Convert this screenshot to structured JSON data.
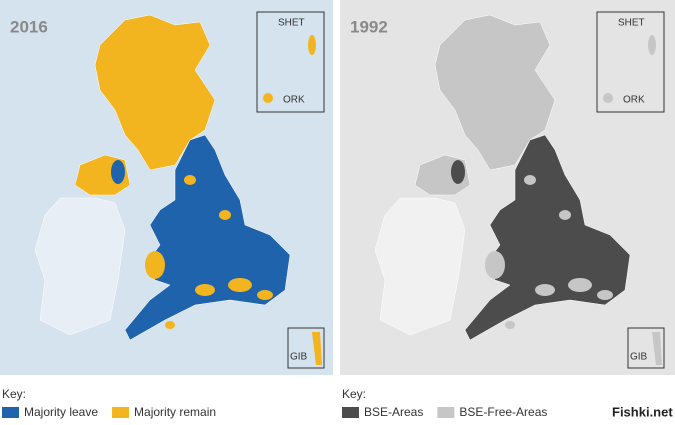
{
  "panels": [
    {
      "title": "2016",
      "insets": [
        "SHET",
        "ORK",
        "GIB"
      ],
      "key_label": "Key:",
      "key": [
        {
          "label": "Majority leave",
          "color": "#1f63ad"
        },
        {
          "label": "Majority remain",
          "color": "#f2b41f"
        }
      ]
    },
    {
      "title": "1992",
      "insets": [
        "SHET",
        "ORK",
        "GIB"
      ],
      "key_label": "Key:",
      "key": [
        {
          "label": "BSE-Areas",
          "color": "#4c4c4c"
        },
        {
          "label": "BSE-Free-Areas",
          "color": "#c6c6c6"
        }
      ]
    }
  ],
  "watermark": "Fishki.net"
}
